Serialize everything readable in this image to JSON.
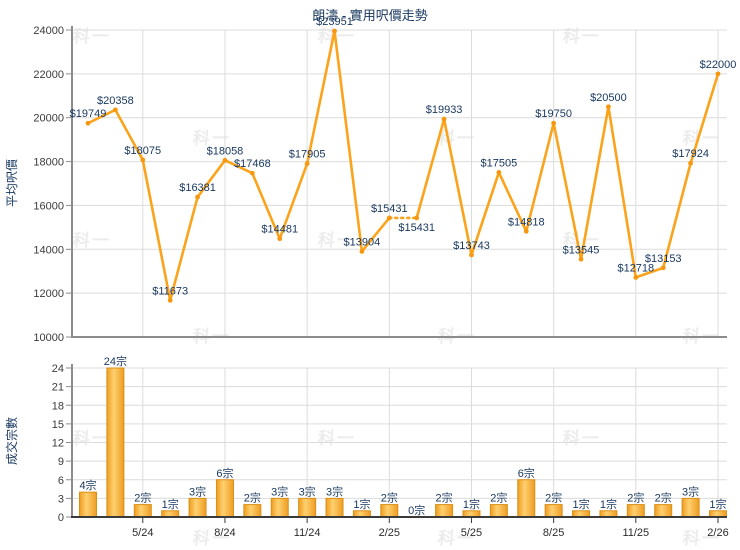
{
  "title": "朗濤 - 實用呎價走勢",
  "watermark_text": "科一",
  "colors": {
    "accent_orange": "#FBA31B",
    "marker_orange": "#F5980F",
    "bar_gradient_edge": "#EF9D1F",
    "bar_gradient_mid": "#FFD070",
    "bar_stroke": "#DB8F16",
    "value_label_navy": "#17375E",
    "tick_label": "#3B3B3B",
    "axis_gray": "#8C8C8C",
    "axis_dark": "#3A3A3A",
    "grid": "#DCDCDC",
    "watermark": "#ECECEC"
  },
  "chart_data": [
    {
      "type": "line",
      "name": "average-price-per-sqft-trend",
      "title": "朗濤 - 實用呎價走勢",
      "ylabel": "平均呎價",
      "values": [
        19749,
        20358,
        18075,
        11673,
        16381,
        18058,
        17468,
        14481,
        17905,
        23951,
        13904,
        15431,
        15431,
        19933,
        13743,
        17505,
        14818,
        19750,
        13545,
        20500,
        12718,
        13153,
        17924,
        22000
      ],
      "point_labels": [
        "$19749",
        "$20358",
        "$18075",
        "$11673",
        "$16381",
        "$18058",
        "$17468",
        "$14481",
        "$17905",
        "$23951",
        "$13904",
        "$15431",
        "$15431",
        "$19933",
        "$13743",
        "$17505",
        "$14818",
        "$19750",
        "$13545",
        "$20500",
        "$12718",
        "$13153",
        "$17924",
        "$22000"
      ],
      "ylim": [
        10000,
        24000
      ],
      "yticks": [
        10000,
        12000,
        14000,
        16000,
        18000,
        20000,
        22000,
        24000
      ],
      "dashed_segments": [
        [
          11,
          12
        ]
      ],
      "below_label_indices": [
        12
      ],
      "grid": true,
      "legend": "none"
    },
    {
      "type": "bar",
      "name": "transaction-count",
      "ylabel": "成交宗數",
      "values": [
        4,
        24,
        2,
        1,
        3,
        6,
        2,
        3,
        3,
        3,
        1,
        2,
        0,
        2,
        1,
        2,
        6,
        2,
        1,
        1,
        2,
        2,
        3,
        1
      ],
      "bar_labels": [
        "4宗",
        "24宗",
        "2宗",
        "1宗",
        "3宗",
        "6宗",
        "2宗",
        "3宗",
        "3宗",
        "3宗",
        "1宗",
        "2宗",
        "0宗",
        "2宗",
        "1宗",
        "2宗",
        "6宗",
        "2宗",
        "1宗",
        "1宗",
        "2宗",
        "2宗",
        "3宗",
        "1宗"
      ],
      "ylim": [
        0,
        24
      ],
      "yticks": [
        0,
        3,
        6,
        9,
        12,
        15,
        18,
        21,
        24
      ],
      "xticks": {
        "indices": [
          2,
          5,
          8,
          11,
          14,
          17,
          20,
          23
        ],
        "labels": [
          "5/24",
          "8/24",
          "11/24",
          "2/25",
          "5/25",
          "8/25",
          "11/25",
          "2/26"
        ]
      },
      "grid": true,
      "legend": "none"
    }
  ]
}
